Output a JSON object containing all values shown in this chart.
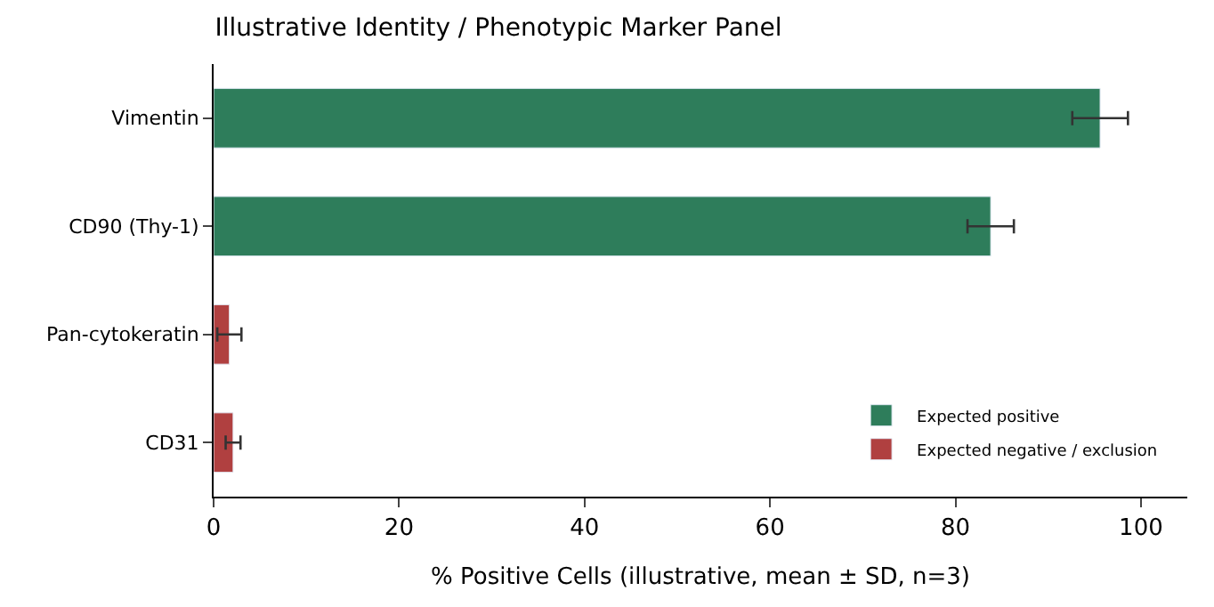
{
  "chart_data": {
    "type": "bar",
    "orientation": "horizontal",
    "title": "Illustrative Identity / Phenotypic Marker Panel",
    "xlabel": "% Positive Cells (illustrative, mean ± SD, n=3)",
    "categories": [
      "Vimentin",
      "CD90 (Thy-1)",
      "Pan-cytokeratin",
      "CD31"
    ],
    "series": [
      {
        "name": "Expected positive",
        "color": "#2e7d5b",
        "values": [
          95.6,
          83.8,
          null,
          null
        ],
        "errors": [
          3.0,
          2.5,
          null,
          null
        ]
      },
      {
        "name": "Expected negative / exclusion",
        "color": "#b04040",
        "values": [
          null,
          null,
          1.7,
          2.1
        ],
        "errors": [
          null,
          null,
          1.3,
          0.8
        ]
      }
    ],
    "xlim": [
      0,
      105
    ],
    "xticks": [
      0,
      20,
      40,
      60,
      80,
      100
    ],
    "legend": "bottom right"
  }
}
